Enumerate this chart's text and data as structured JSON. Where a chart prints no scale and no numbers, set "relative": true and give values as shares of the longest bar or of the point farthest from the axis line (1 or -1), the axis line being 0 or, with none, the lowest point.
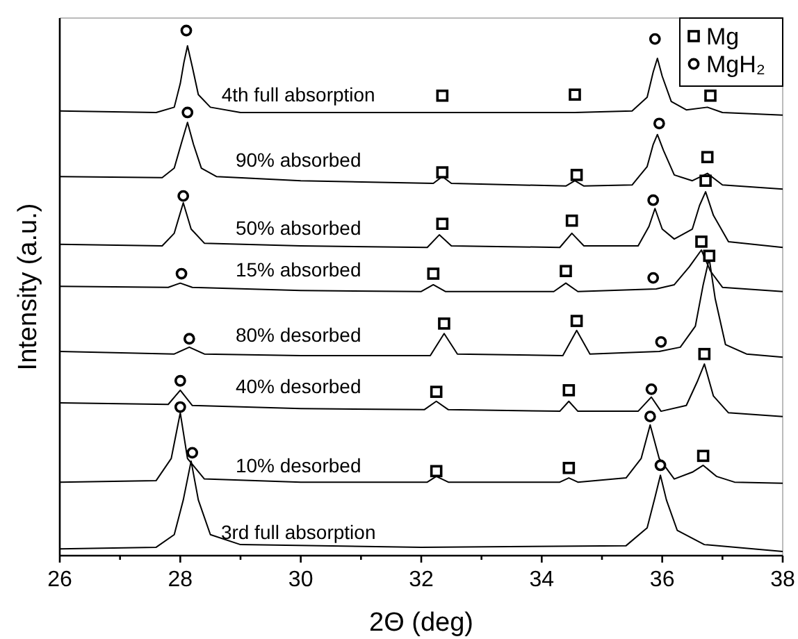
{
  "chart_data": {
    "type": "line",
    "relative": true,
    "xlabel": "2Θ (deg)",
    "ylabel": "Intensity (a.u.)",
    "xlim": [
      26,
      38
    ],
    "xticks": [
      26,
      {
        "value": 27,
        "label": null
      },
      28,
      {
        "value": 29,
        "label": null
      },
      30,
      {
        "value": 31,
        "label": null
      },
      32,
      {
        "value": 33,
        "label": null
      },
      34,
      {
        "value": 35,
        "label": null
      },
      36,
      {
        "value": 37,
        "label": null
      },
      38
    ],
    "legend": "top right",
    "grid": false,
    "line_style": "solid",
    "series": [
      {
        "name": "4th full absorption",
        "color": "#000000",
        "x": [
          26,
          27.6,
          27.9,
          28.0,
          28.06,
          28.12,
          28.2,
          28.3,
          28.5,
          29,
          32.35,
          34.55,
          35.5,
          35.75,
          35.85,
          35.92,
          36.0,
          36.15,
          36.4,
          36.75,
          37.0,
          38
        ],
        "values": [
          0.847,
          0.844,
          0.854,
          0.899,
          0.939,
          0.971,
          0.931,
          0.878,
          0.854,
          0.844,
          0.844,
          0.844,
          0.847,
          0.873,
          0.921,
          0.947,
          0.913,
          0.865,
          0.849,
          0.854,
          0.844,
          0.839
        ]
      },
      {
        "name": "90% absorbed",
        "color": "#000000",
        "x": [
          26,
          27.7,
          27.9,
          28.02,
          28.12,
          28.22,
          28.35,
          28.6,
          30,
          32.2,
          32.35,
          32.5,
          34.4,
          34.55,
          34.7,
          35.5,
          35.75,
          35.85,
          35.92,
          36.02,
          36.2,
          36.5,
          36.75,
          37.0,
          38
        ],
        "values": [
          0.722,
          0.72,
          0.738,
          0.786,
          0.825,
          0.783,
          0.738,
          0.722,
          0.714,
          0.709,
          0.722,
          0.709,
          0.704,
          0.714,
          0.704,
          0.706,
          0.741,
          0.783,
          0.802,
          0.772,
          0.725,
          0.714,
          0.728,
          0.706,
          0.698
        ]
      },
      {
        "name": "50% absorbed",
        "color": "#000000",
        "x": [
          26,
          27.7,
          27.9,
          28.05,
          28.18,
          28.4,
          30,
          32.1,
          32.3,
          32.5,
          34.3,
          34.5,
          34.7,
          35.6,
          35.78,
          35.88,
          36.0,
          36.2,
          36.5,
          36.62,
          36.72,
          36.85,
          37.1,
          38
        ],
        "values": [
          0.593,
          0.59,
          0.614,
          0.672,
          0.622,
          0.595,
          0.59,
          0.587,
          0.611,
          0.59,
          0.587,
          0.614,
          0.59,
          0.59,
          0.627,
          0.661,
          0.622,
          0.603,
          0.622,
          0.667,
          0.693,
          0.648,
          0.598,
          0.587
        ]
      },
      {
        "name": "15% absorbed",
        "color": "#000000",
        "x": [
          26,
          27.8,
          28.0,
          28.2,
          30,
          32.0,
          32.2,
          32.4,
          34.2,
          34.4,
          34.6,
          35.9,
          36.2,
          36.45,
          36.65,
          36.8,
          37.0,
          38
        ],
        "values": [
          0.513,
          0.511,
          0.519,
          0.511,
          0.505,
          0.503,
          0.516,
          0.503,
          0.503,
          0.519,
          0.503,
          0.508,
          0.516,
          0.55,
          0.582,
          0.542,
          0.511,
          0.503
        ]
      },
      {
        "name": "80% desorbed",
        "color": "#000000",
        "x": [
          26,
          27.9,
          28.15,
          28.4,
          30,
          32.15,
          32.38,
          32.6,
          34.35,
          34.58,
          34.8,
          35.95,
          36.3,
          36.55,
          36.68,
          36.78,
          36.88,
          37.05,
          37.4,
          38
        ],
        "values": [
          0.389,
          0.384,
          0.397,
          0.384,
          0.381,
          0.381,
          0.423,
          0.384,
          0.381,
          0.429,
          0.384,
          0.389,
          0.397,
          0.437,
          0.516,
          0.566,
          0.489,
          0.402,
          0.384,
          0.378
        ]
      },
      {
        "name": "40% desorbed",
        "color": "#000000",
        "x": [
          26,
          27.8,
          28.0,
          28.2,
          30,
          32.05,
          32.25,
          32.45,
          34.3,
          34.45,
          34.6,
          35.6,
          35.82,
          35.98,
          36.4,
          36.58,
          36.7,
          36.85,
          37.1,
          38
        ],
        "values": [
          0.291,
          0.288,
          0.315,
          0.286,
          0.28,
          0.278,
          0.294,
          0.278,
          0.275,
          0.294,
          0.275,
          0.275,
          0.302,
          0.275,
          0.286,
          0.331,
          0.365,
          0.304,
          0.272,
          0.265
        ]
      },
      {
        "name": "10% desorbed",
        "color": "#000000",
        "x": [
          26,
          27.6,
          27.85,
          28.0,
          28.12,
          28.4,
          30,
          32.1,
          32.25,
          32.45,
          34.3,
          34.45,
          34.6,
          35.4,
          35.65,
          35.8,
          35.95,
          36.2,
          36.5,
          36.68,
          36.9,
          37.2,
          38
        ],
        "values": [
          0.14,
          0.143,
          0.185,
          0.272,
          0.185,
          0.146,
          0.14,
          0.14,
          0.151,
          0.14,
          0.14,
          0.148,
          0.14,
          0.148,
          0.185,
          0.249,
          0.185,
          0.146,
          0.159,
          0.172,
          0.151,
          0.14,
          0.138
        ]
      },
      {
        "name": "3rd full absorption",
        "color": "#000000",
        "x": [
          26,
          27.6,
          27.9,
          28.05,
          28.18,
          28.3,
          28.5,
          29,
          32,
          35.4,
          35.75,
          35.88,
          35.97,
          36.07,
          36.25,
          36.7,
          38
        ],
        "values": [
          0.013,
          0.016,
          0.04,
          0.106,
          0.18,
          0.106,
          0.04,
          0.021,
          0.016,
          0.019,
          0.053,
          0.111,
          0.153,
          0.106,
          0.048,
          0.021,
          0.008
        ]
      },
      {
        "name": "Mg",
        "type": "scatter",
        "marker": "square",
        "color": "#000000",
        "x": [
          32.35,
          34.55,
          36.8,
          32.35,
          34.58,
          36.75,
          32.35,
          34.5,
          36.72,
          32.2,
          34.4,
          36.65,
          32.38,
          34.58,
          36.78,
          32.25,
          34.45,
          36.7,
          32.25,
          34.45,
          36.68
        ],
        "values": [
          0.876,
          0.878,
          0.876,
          0.73,
          0.725,
          0.759,
          0.632,
          0.638,
          0.714,
          0.537,
          0.542,
          0.598,
          0.442,
          0.447,
          0.571,
          0.312,
          0.315,
          0.384,
          0.161,
          0.167,
          0.19
        ]
      },
      {
        "name": "MgH₂",
        "type": "scatter",
        "marker": "circle",
        "color": "#000000",
        "x": [
          28.1,
          35.88,
          28.12,
          35.95,
          28.05,
          35.85,
          28.02,
          35.85,
          28.15,
          35.98,
          28.0,
          35.82,
          28.0,
          35.8,
          28.2,
          35.97
        ],
        "values": [
          1.0,
          0.984,
          0.844,
          0.823,
          0.685,
          0.677,
          0.537,
          0.529,
          0.413,
          0.407,
          0.333,
          0.317,
          0.283,
          0.265,
          0.196,
          0.172
        ]
      }
    ]
  }
}
